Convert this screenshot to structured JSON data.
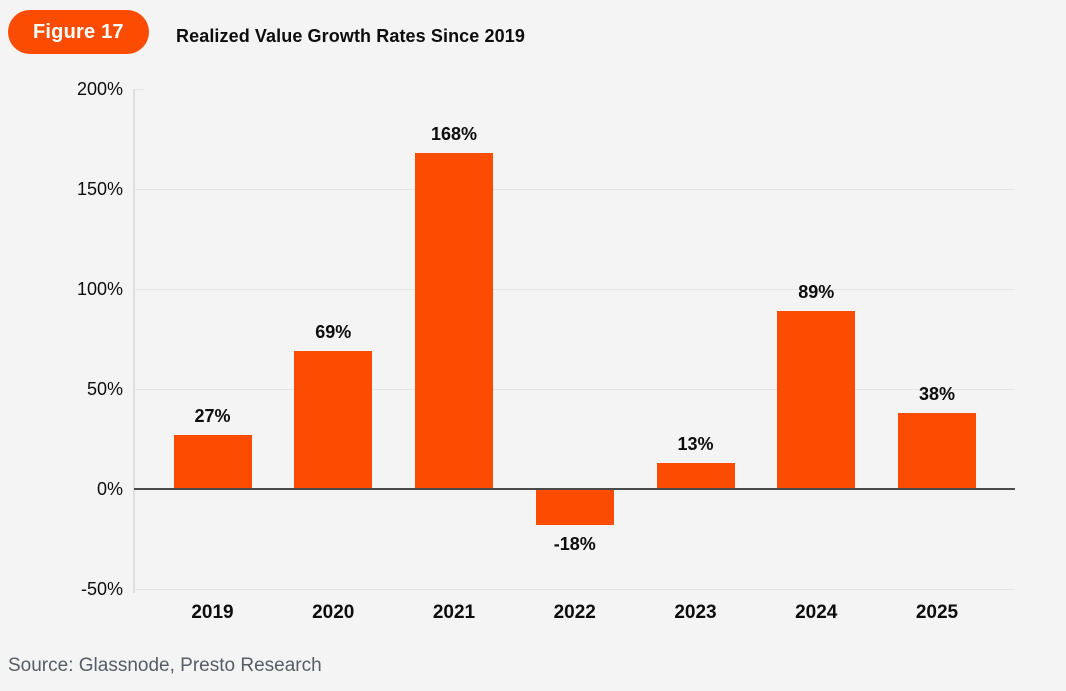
{
  "header": {
    "badge": "Figure 17",
    "title": "Realized Value Growth Rates Since 2019"
  },
  "footer": {
    "source": "Source: Glassnode, Presto Research"
  },
  "colors": {
    "accent_orange": "#FC4C02",
    "background": "#F4F4F4",
    "gridline": "#E5E5E6",
    "axis_line": "#DFDFE0",
    "zero_line": "#4A4A4A",
    "text_primary": "#0D0D0D",
    "text_source": "#565D66"
  },
  "chart_data": {
    "type": "bar",
    "title": "Realized Value Growth Rates Since 2019",
    "categories": [
      "2019",
      "2020",
      "2021",
      "2022",
      "2023",
      "2024",
      "2025"
    ],
    "values": [
      27,
      69,
      168,
      -18,
      13,
      89,
      38
    ],
    "bar_labels": [
      "27%",
      "69%",
      "168%",
      "-18%",
      "13%",
      "89%",
      "38%"
    ],
    "xlabel": "",
    "ylabel": "",
    "ylim": [
      -50,
      200
    ],
    "yticks": [
      200,
      150,
      100,
      50,
      0,
      -50
    ],
    "ytick_labels": [
      "200%",
      "150%",
      "100%",
      "50%",
      "0%",
      "-50%"
    ],
    "grid": "horizontal-only",
    "legend": "none",
    "bar_color": "#FC4C02"
  }
}
